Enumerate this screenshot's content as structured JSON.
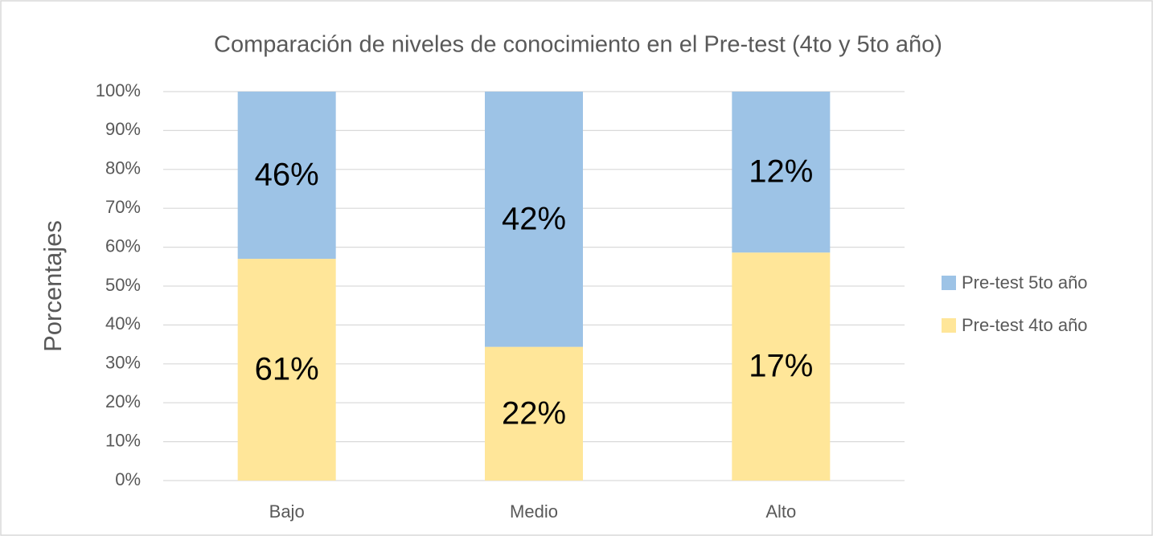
{
  "chart_data": {
    "type": "bar",
    "stacking": "percent",
    "title": "Comparación de niveles de conocimiento en el Pre-test (4to y 5to año)",
    "ylabel": "Porcentajes",
    "categories": [
      "Bajo",
      "Medio",
      "Alto"
    ],
    "series": [
      {
        "name": "Pre-test 4to año",
        "color": "#ffe699",
        "values": [
          61,
          22,
          17
        ],
        "value_labels": [
          "61%",
          "22%",
          "17%"
        ]
      },
      {
        "name": "Pre-test 5to año",
        "color": "#9dc3e6",
        "values": [
          46,
          42,
          12
        ],
        "value_labels": [
          "46%",
          "42%",
          "12%"
        ]
      }
    ],
    "ylim": [
      0,
      100
    ],
    "yticks": [
      {
        "value": 0,
        "label": "0%"
      },
      {
        "value": 10,
        "label": "10%"
      },
      {
        "value": 20,
        "label": "20%"
      },
      {
        "value": 30,
        "label": "30%"
      },
      {
        "value": 40,
        "label": "40%"
      },
      {
        "value": 50,
        "label": "50%"
      },
      {
        "value": 60,
        "label": "60%"
      },
      {
        "value": 70,
        "label": "70%"
      },
      {
        "value": 80,
        "label": "80%"
      },
      {
        "value": 90,
        "label": "90%"
      },
      {
        "value": 100,
        "label": "100%"
      }
    ],
    "grid": true,
    "legend": "right"
  }
}
